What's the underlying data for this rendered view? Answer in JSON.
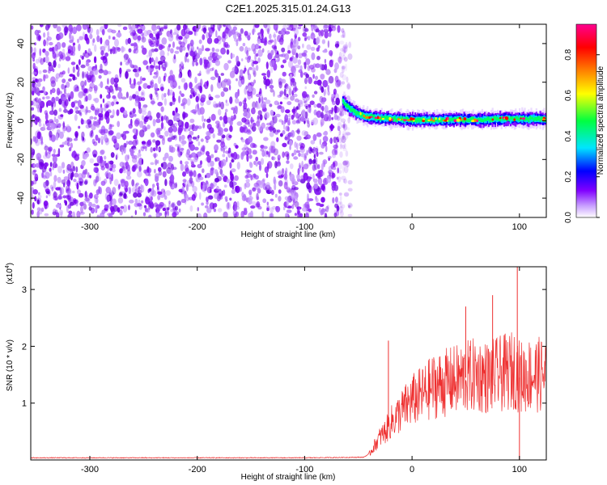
{
  "page": {
    "title": "C2E1.2025.315.01.24.G13"
  },
  "chart_data": [
    {
      "type": "heatmap",
      "title": "C2E1.2025.315.01.24.G13",
      "xlabel": "Height of straight line (km)",
      "ylabel": "Frequency (Hz)",
      "xlim": [
        -355,
        125
      ],
      "ylim": [
        -50,
        50
      ],
      "xticks": [
        -300,
        -200,
        -100,
        0,
        100
      ],
      "yticks": [
        -40,
        -20,
        0,
        20,
        40
      ],
      "xtick_labels": [
        "-300",
        "-200",
        "-100",
        "0",
        "100"
      ],
      "ytick_labels": [
        "-40",
        "-20",
        "0",
        "20",
        "40"
      ],
      "noise_region_x": [
        -355,
        -62
      ],
      "signal_track": {
        "x": [
          -65,
          -60,
          -55,
          -50,
          -45,
          -40,
          -30,
          -20,
          -10,
          0,
          20,
          40,
          60,
          80,
          100,
          125
        ],
        "frequency": [
          10,
          7,
          5,
          3.5,
          2.5,
          2,
          1.5,
          1,
          0.8,
          0.5,
          0.5,
          0.8,
          0.5,
          1,
          1,
          1
        ]
      },
      "colorbar": {
        "label": "Normalized spectral amplitude",
        "range": [
          0.0,
          0.95
        ],
        "ticks": [
          0.0,
          0.2,
          0.4,
          0.6,
          0.8
        ],
        "tick_labels": [
          "0.0",
          "0.2",
          "0.4",
          "0.6",
          "0.8"
        ],
        "colors": [
          "#ffffff",
          "#8000ff",
          "#0000ff",
          "#00e5ff",
          "#00ff40",
          "#ffff00",
          "#ff8000",
          "#ff0000",
          "#ff0090"
        ]
      },
      "grid": false
    },
    {
      "type": "line",
      "title": "",
      "xlabel": "Height of straight line (km)",
      "ylabel": "SNR (10 * v/v)",
      "scale_label": "(x10",
      "scale_exponent": "4",
      "scale_close": ")",
      "xlim": [
        -355,
        125
      ],
      "ylim": [
        0,
        3.4
      ],
      "xticks": [
        -300,
        -200,
        -100,
        0,
        100
      ],
      "yticks": [
        1,
        2,
        3
      ],
      "xtick_labels": [
        "-300",
        "-200",
        "-100",
        "0",
        "100"
      ],
      "ytick_labels": [
        "1",
        "2",
        "3"
      ],
      "color": "#ee3030",
      "series": [
        {
          "x": [
            -355,
            -300,
            -200,
            -100,
            -45,
            -40,
            -35,
            -30,
            -25,
            -20,
            -15,
            -10,
            -5,
            0,
            10,
            20,
            30,
            40,
            50,
            60,
            70,
            80,
            90,
            97,
            100,
            110,
            120,
            125
          ],
          "values": [
            0.03,
            0.03,
            0.03,
            0.03,
            0.04,
            0.1,
            0.25,
            0.4,
            0.5,
            0.65,
            0.75,
            0.85,
            0.95,
            1.05,
            1.15,
            1.3,
            1.35,
            1.4,
            1.45,
            1.5,
            1.45,
            1.5,
            1.55,
            1.6,
            1.45,
            1.5,
            1.5,
            1.5
          ]
        }
      ],
      "spikes": [
        {
          "x": -22,
          "value": 2.1
        },
        {
          "x": 50,
          "value": 2.7
        },
        {
          "x": 75,
          "value": 2.9
        },
        {
          "x": 98,
          "value": 3.4
        },
        {
          "x": 100,
          "value": 0.0
        }
      ],
      "grid": false
    }
  ]
}
